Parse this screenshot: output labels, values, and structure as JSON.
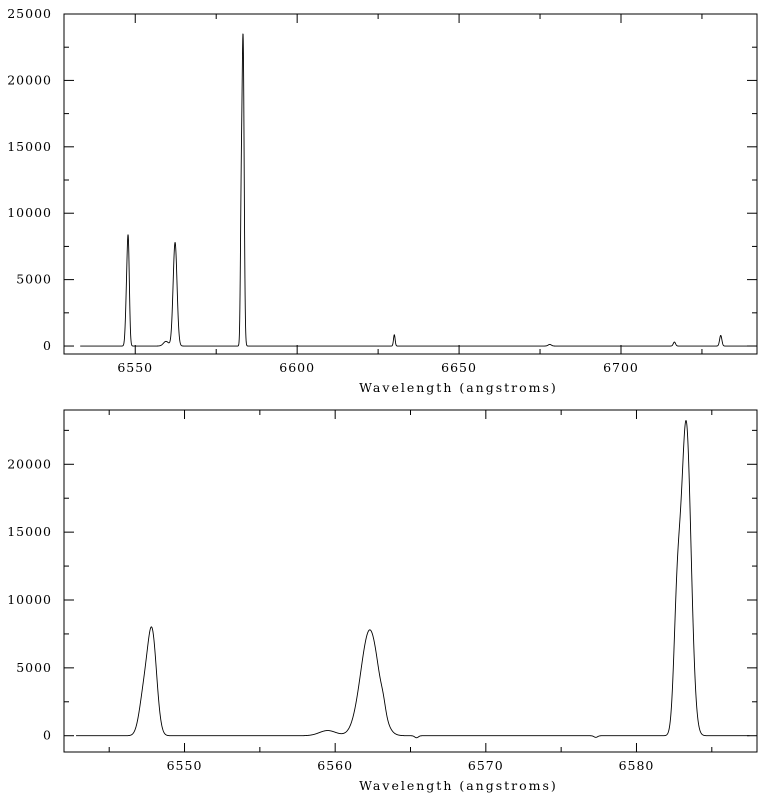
{
  "chart_data": [
    {
      "type": "line",
      "title": "",
      "xlabel": "Wavelength (angstroms)",
      "ylabel": "",
      "xlim": [
        6528,
        6742
      ],
      "ylim": [
        -600,
        25000
      ],
      "x_ticks": [
        6550,
        6600,
        6650,
        6700
      ],
      "y_ticks": [
        0,
        5000,
        10000,
        15000,
        20000,
        25000
      ],
      "grid": false,
      "peaks": [
        {
          "x": 6547.3,
          "y": 2900,
          "width": 0.35
        },
        {
          "x": 6547.85,
          "y": 7400,
          "width": 0.35
        },
        {
          "x": 6559.5,
          "y": 350,
          "width": 0.8
        },
        {
          "x": 6562.3,
          "y": 7800,
          "width": 0.6
        },
        {
          "x": 6582.7,
          "y": 8600,
          "width": 0.25
        },
        {
          "x": 6583.3,
          "y": 23000,
          "width": 0.33
        },
        {
          "x": 6630.0,
          "y": 850,
          "width": 0.25
        },
        {
          "x": 6678.0,
          "y": 120,
          "width": 0.5
        },
        {
          "x": 6716.5,
          "y": 300,
          "width": 0.35
        },
        {
          "x": 6730.8,
          "y": 800,
          "width": 0.35
        }
      ]
    },
    {
      "type": "line",
      "title": "",
      "xlabel": "Wavelength (angstroms)",
      "ylabel": "",
      "xlim": [
        6542,
        6588
      ],
      "ylim": [
        -1200,
        24000
      ],
      "x_ticks": [
        6550,
        6560,
        6570,
        6580
      ],
      "y_ticks": [
        0,
        5000,
        10000,
        15000,
        20000
      ],
      "grid": false,
      "peaks": [
        {
          "x": 6547.3,
          "y": 2900,
          "width": 0.3
        },
        {
          "x": 6547.85,
          "y": 7400,
          "width": 0.3
        },
        {
          "x": 6559.5,
          "y": 380,
          "width": 0.55
        },
        {
          "x": 6562.3,
          "y": 7800,
          "width": 0.6
        },
        {
          "x": 6563.2,
          "y": 500,
          "width": 0.15
        },
        {
          "x": 6582.7,
          "y": 8600,
          "width": 0.22
        },
        {
          "x": 6583.3,
          "y": 23000,
          "width": 0.32
        }
      ],
      "dips": [
        {
          "x": 6565.4,
          "y": -150,
          "width": 0.12
        },
        {
          "x": 6577.3,
          "y": -120,
          "width": 0.12
        }
      ]
    }
  ]
}
